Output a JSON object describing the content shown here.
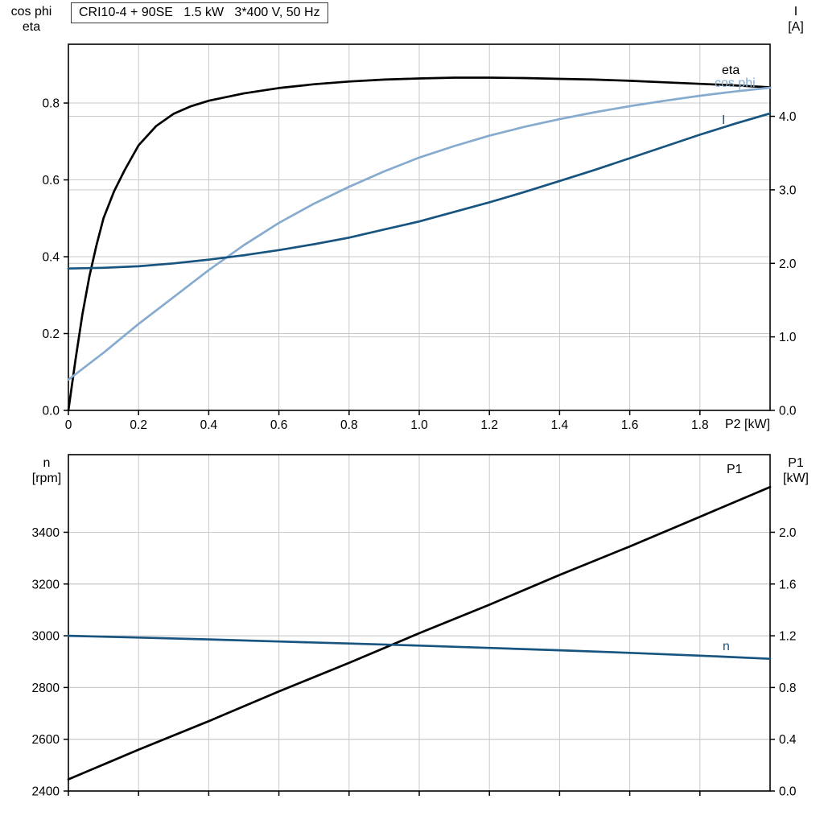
{
  "title": "CRI10-4 + 90SE   1.5 kW   3*400 V, 50 Hz",
  "colors": {
    "black": "#000000",
    "dark_blue": "#17547f",
    "light_blue": "#86abce",
    "grid": "#c9c9c9",
    "axis": "#000000",
    "background": "#ffffff"
  },
  "chart_data": [
    {
      "id": "top",
      "type": "line",
      "title": "CRI10-4 + 90SE   1.5 kW   3*400 V, 50 Hz",
      "x": {
        "lim": [
          0,
          2.0
        ],
        "tick_values": [
          0,
          0.2,
          0.4,
          0.6,
          0.8,
          1.0,
          1.2,
          1.4,
          1.6,
          1.8
        ],
        "tick_labels": [
          "0",
          "0.2",
          "0.4",
          "0.6",
          "0.8",
          "1.0",
          "1.2",
          "1.4",
          "1.6",
          "1.8"
        ],
        "end_label": "P2 [kW]"
      },
      "y_left": {
        "title_lines": [
          "cos phi",
          "eta"
        ],
        "lim": [
          0,
          0.953
        ],
        "tick_values": [
          0,
          0.2,
          0.4,
          0.6,
          0.8
        ],
        "tick_labels": [
          "0.0",
          "0.2",
          "0.4",
          "0.6",
          "0.8"
        ]
      },
      "y_right": {
        "title_lines": [
          "I",
          "[A]"
        ],
        "lim": [
          0,
          4.98
        ],
        "tick_values": [
          0,
          1.0,
          2.0,
          3.0,
          4.0
        ],
        "tick_labels": [
          "0.0",
          "1.0",
          "2.0",
          "3.0",
          "4.0"
        ]
      },
      "series": [
        {
          "name": "eta",
          "label": "eta",
          "axis": "left",
          "color_key": "black",
          "x": [
            0,
            0.02,
            0.04,
            0.06,
            0.08,
            0.1,
            0.13,
            0.16,
            0.2,
            0.25,
            0.3,
            0.35,
            0.4,
            0.5,
            0.6,
            0.7,
            0.8,
            0.9,
            1.0,
            1.1,
            1.2,
            1.3,
            1.4,
            1.5,
            1.6,
            1.7,
            1.8,
            1.9,
            2.0
          ],
          "y": [
            0,
            0.13,
            0.25,
            0.35,
            0.43,
            0.5,
            0.57,
            0.625,
            0.69,
            0.74,
            0.772,
            0.792,
            0.806,
            0.825,
            0.839,
            0.849,
            0.856,
            0.861,
            0.864,
            0.866,
            0.866,
            0.865,
            0.863,
            0.861,
            0.858,
            0.854,
            0.85,
            0.846,
            0.841
          ]
        },
        {
          "name": "cos_phi",
          "label": "cos phi",
          "axis": "left",
          "color_key": "light_blue",
          "x": [
            0,
            0.1,
            0.2,
            0.3,
            0.4,
            0.5,
            0.6,
            0.7,
            0.8,
            0.9,
            1.0,
            1.1,
            1.2,
            1.3,
            1.4,
            1.5,
            1.6,
            1.7,
            1.8,
            1.9,
            2.0
          ],
          "y": [
            0.08,
            0.15,
            0.225,
            0.295,
            0.365,
            0.43,
            0.488,
            0.538,
            0.582,
            0.622,
            0.658,
            0.688,
            0.715,
            0.738,
            0.758,
            0.776,
            0.792,
            0.806,
            0.819,
            0.83,
            0.84
          ]
        },
        {
          "name": "current",
          "label": "I",
          "axis": "right",
          "color_key": "dark_blue",
          "x": [
            0,
            0.1,
            0.2,
            0.3,
            0.4,
            0.5,
            0.6,
            0.7,
            0.8,
            0.9,
            1.0,
            1.1,
            1.2,
            1.3,
            1.4,
            1.5,
            1.6,
            1.7,
            1.8,
            1.9,
            2.0
          ],
          "y": [
            1.93,
            1.94,
            1.96,
            2.0,
            2.05,
            2.11,
            2.18,
            2.26,
            2.35,
            2.46,
            2.57,
            2.7,
            2.83,
            2.97,
            3.12,
            3.27,
            3.43,
            3.59,
            3.75,
            3.9,
            4.04
          ]
        }
      ]
    },
    {
      "id": "bottom",
      "type": "line",
      "x": {
        "lim": [
          0,
          2.0
        ],
        "tick_values": [
          0,
          0.2,
          0.4,
          0.6,
          0.8,
          1.0,
          1.2,
          1.4,
          1.6,
          1.8
        ],
        "tick_labels": [],
        "end_label": ""
      },
      "y_left": {
        "title_lines": [
          "n",
          "[rpm]"
        ],
        "lim": [
          2400,
          3700
        ],
        "tick_values": [
          2400,
          2600,
          2800,
          3000,
          3200,
          3400
        ],
        "tick_labels": [
          "2400",
          "2600",
          "2800",
          "3000",
          "3200",
          "3400"
        ]
      },
      "y_right": {
        "title_lines": [
          "P1",
          "[kW]"
        ],
        "lim": [
          0,
          2.6
        ],
        "tick_values": [
          0,
          0.4,
          0.8,
          1.2,
          1.6,
          2.0
        ],
        "tick_labels": [
          "0.0",
          "0.4",
          "0.8",
          "1.2",
          "1.6",
          "2.0"
        ]
      },
      "series": [
        {
          "name": "p1",
          "label": "P1",
          "axis": "right",
          "color_key": "black",
          "x": [
            0,
            0.2,
            0.4,
            0.6,
            0.8,
            1.0,
            1.2,
            1.4,
            1.6,
            1.8,
            2.0
          ],
          "y": [
            0.09,
            0.32,
            0.54,
            0.77,
            0.99,
            1.22,
            1.44,
            1.67,
            1.89,
            2.12,
            2.35
          ]
        },
        {
          "name": "speed",
          "label": "n",
          "axis": "left",
          "color_key": "dark_blue",
          "x": [
            0,
            0.2,
            0.4,
            0.6,
            0.8,
            1.0,
            1.2,
            1.4,
            1.6,
            1.8,
            2.0
          ],
          "y": [
            3000,
            2993,
            2986,
            2978,
            2970,
            2962,
            2953,
            2944,
            2934,
            2923,
            2911
          ]
        }
      ]
    }
  ]
}
